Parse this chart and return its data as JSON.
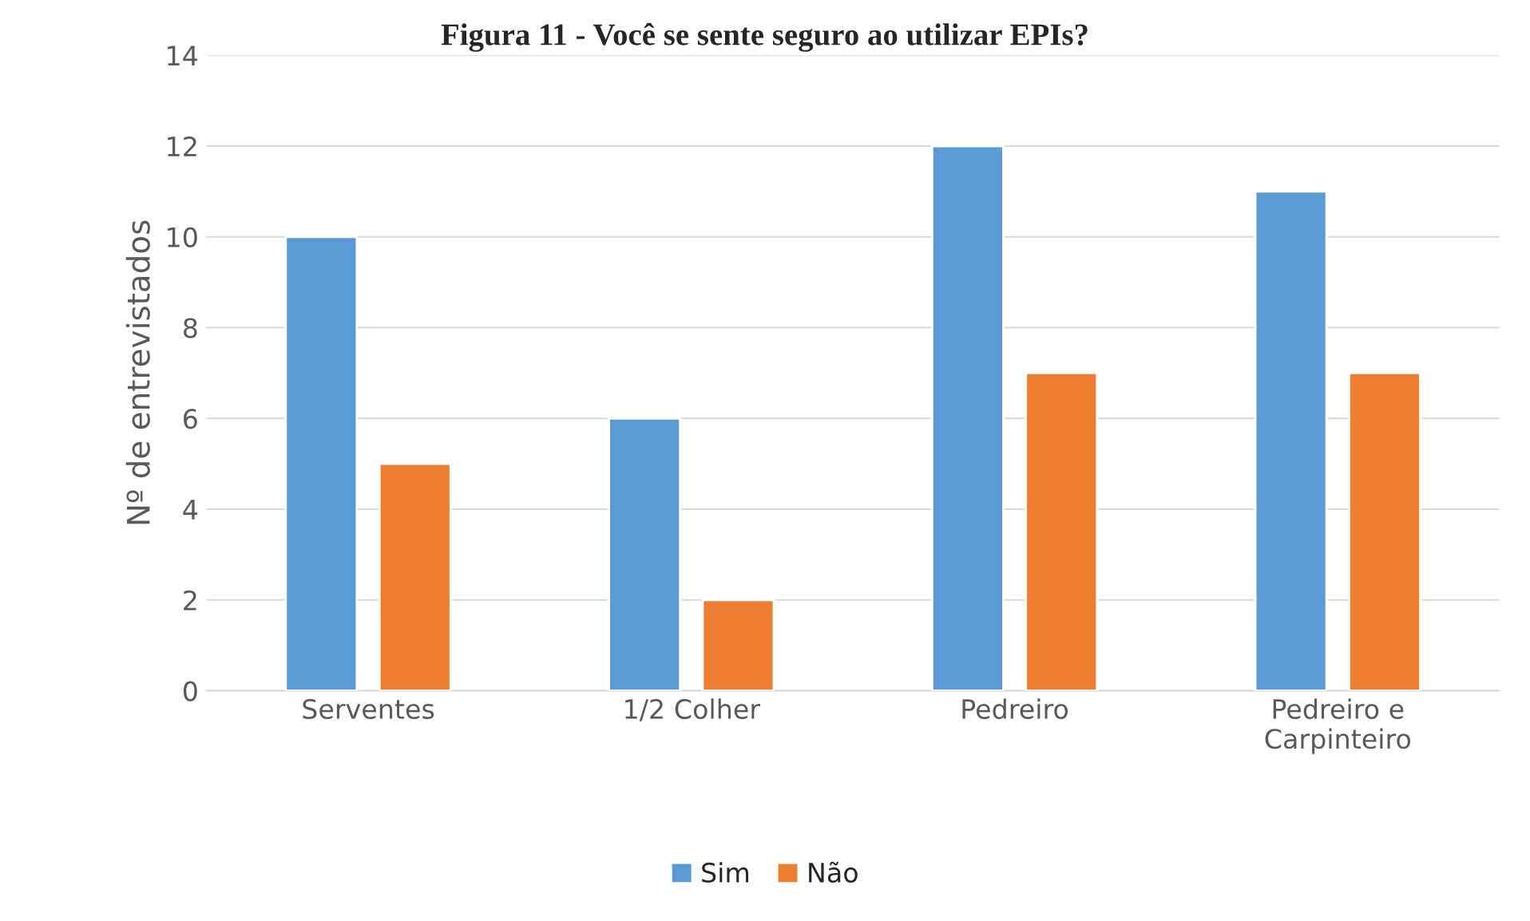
{
  "chart_data": {
    "type": "bar",
    "title": "Figura 11 - Você se sente seguro ao utilizar EPIs?",
    "ylabel": "Nº de entrevistados",
    "categories": [
      "Serventes",
      "1/2 Colher",
      "Pedreiro",
      "Pedreiro e\nCarpinteiro"
    ],
    "series": [
      {
        "name": "Sim",
        "color": "#5b9bd5",
        "values": [
          10,
          6,
          12,
          11
        ]
      },
      {
        "name": "Não",
        "color": "#ed7d31",
        "values": [
          5,
          2,
          7,
          7
        ]
      }
    ],
    "ylim": [
      0,
      14
    ],
    "yticks": [
      0,
      2,
      4,
      6,
      8,
      10,
      12,
      14
    ],
    "grid": "y",
    "legend": "bottom"
  }
}
